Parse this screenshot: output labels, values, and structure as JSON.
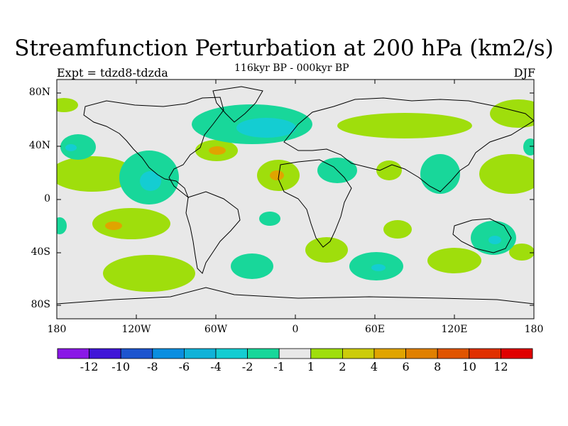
{
  "title": "Streamfunction Perturbation at 200 hPa (km2/s)",
  "subtitle": "116kyr BP - 000kyr BP",
  "left_label": "Expt = tdzd8-tdzda",
  "right_label": "DJF",
  "lat_labels": [
    "80N",
    "40N",
    "0",
    "40S",
    "80S"
  ],
  "lon_labels": [
    "180",
    "120W",
    "60W",
    "0",
    "60E",
    "120E",
    "180"
  ],
  "colors": {
    "background": "#e8e8e8",
    "coast": "#000000",
    "palette": [
      "#8a18e6",
      "#4016d8",
      "#1d55cf",
      "#0a8ee0",
      "#10b2d8",
      "#14cdd2",
      "#18d79a",
      "#e8e8e8",
      "#9fde0c",
      "#cccc0a",
      "#e0a400",
      "#e08000",
      "#e05500",
      "#e03000",
      "#e00000"
    ]
  },
  "colorbar": {
    "labels": [
      "-12",
      "-10",
      "-8",
      "-6",
      "-4",
      "-2",
      "-1",
      "1",
      "2",
      "4",
      "6",
      "8",
      "10",
      "12"
    ]
  }
}
